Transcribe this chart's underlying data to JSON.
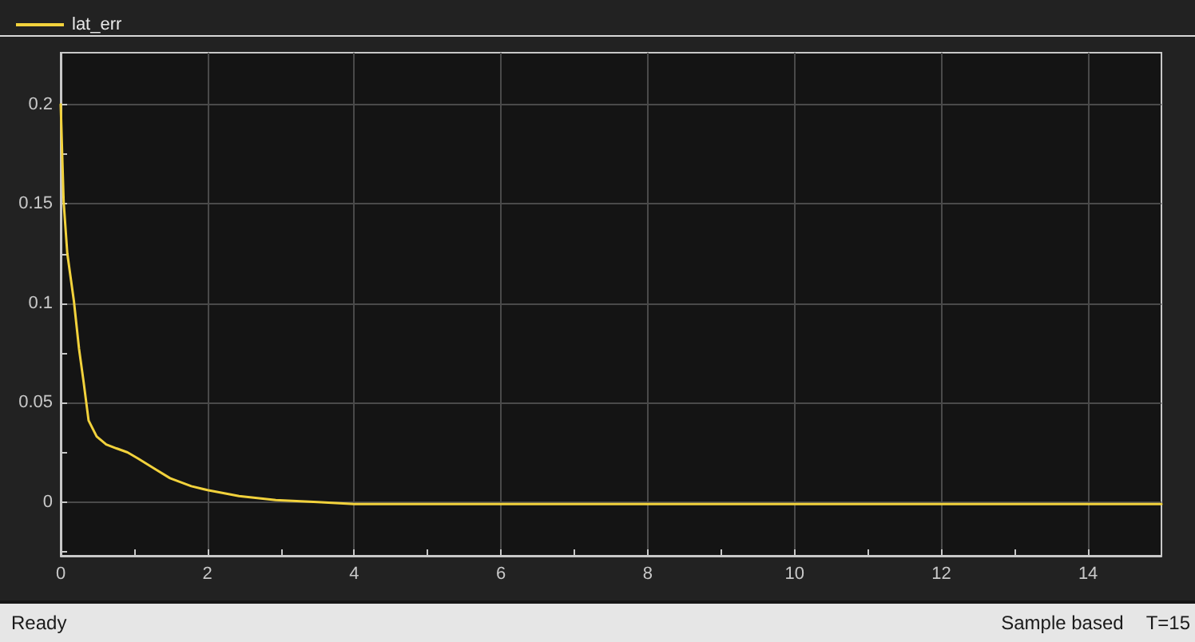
{
  "chart_data": {
    "type": "line",
    "x": [
      0,
      0.02,
      0.04,
      0.09,
      0.18,
      0.25,
      0.31,
      0.38,
      0.49,
      0.62,
      0.76,
      0.91,
      1.05,
      1.27,
      1.49,
      1.78,
      2.0,
      2.43,
      2.93,
      3.5,
      4.0,
      5.0,
      6.0,
      7.0,
      8.0,
      10.0,
      12.0,
      15.0
    ],
    "series": [
      {
        "name": "lat_err",
        "color": "#f2d23c",
        "values": [
          0.2,
          0.175,
          0.151,
          0.125,
          0.101,
          0.077,
          0.061,
          0.041,
          0.033,
          0.029,
          0.027,
          0.025,
          0.022,
          0.017,
          0.012,
          0.008,
          0.006,
          0.003,
          0.001,
          0,
          -0.001,
          -0.001,
          -0.001,
          -0.001,
          -0.001,
          -0.001,
          -0.001,
          -0.001
        ]
      }
    ],
    "xlim": [
      0,
      15
    ],
    "xticks": [
      0,
      {
        "value": 1,
        "label": null
      },
      2,
      {
        "value": 3,
        "label": null
      },
      4,
      {
        "value": 5,
        "label": null
      },
      6,
      {
        "value": 7,
        "label": null
      },
      8,
      {
        "value": 9,
        "label": null
      },
      10,
      {
        "value": 11,
        "label": null
      },
      12,
      {
        "value": 13,
        "label": null
      },
      14
    ],
    "ylim": [
      -0.027,
      0.226
    ],
    "yticks": [
      {
        "value": -0.025,
        "label": null
      },
      0,
      {
        "value": 0.025,
        "label": null
      },
      0.05,
      {
        "value": 0.075,
        "label": null
      },
      0.1,
      {
        "value": 0.125,
        "label": null
      },
      0.15,
      {
        "value": 0.175,
        "label": null
      },
      0.2
    ],
    "grid": true,
    "legend": "top left",
    "marker": "none",
    "line_style": "solid",
    "annotations": [
      "Ready",
      "Sample based",
      "T=15"
    ]
  }
}
